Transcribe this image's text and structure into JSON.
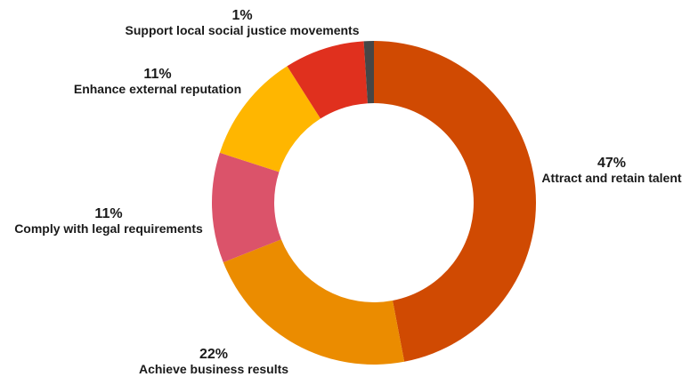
{
  "chart_data": {
    "type": "pie",
    "variant": "donut",
    "start_angle_deg": 0,
    "direction": "clockwise",
    "slices": [
      {
        "label": "Attract and retain talent",
        "percent_label": "47%",
        "value": 47,
        "color": "#d04a02"
      },
      {
        "label": "Achieve business results",
        "percent_label": "22%",
        "value": 22,
        "color": "#eb8c00"
      },
      {
        "label": "Comply with legal requirements",
        "percent_label": "11%",
        "value": 11,
        "color": "#db536a"
      },
      {
        "label": "Enhance external reputation",
        "percent_label": "11%",
        "value": 11,
        "color": "#ffb600"
      },
      {
        "label": "",
        "percent_label": "",
        "value": 8,
        "color": "#e0301e"
      },
      {
        "label": "Support local social justice movements",
        "percent_label": "1%",
        "value": 1,
        "color": "#464646"
      }
    ]
  }
}
